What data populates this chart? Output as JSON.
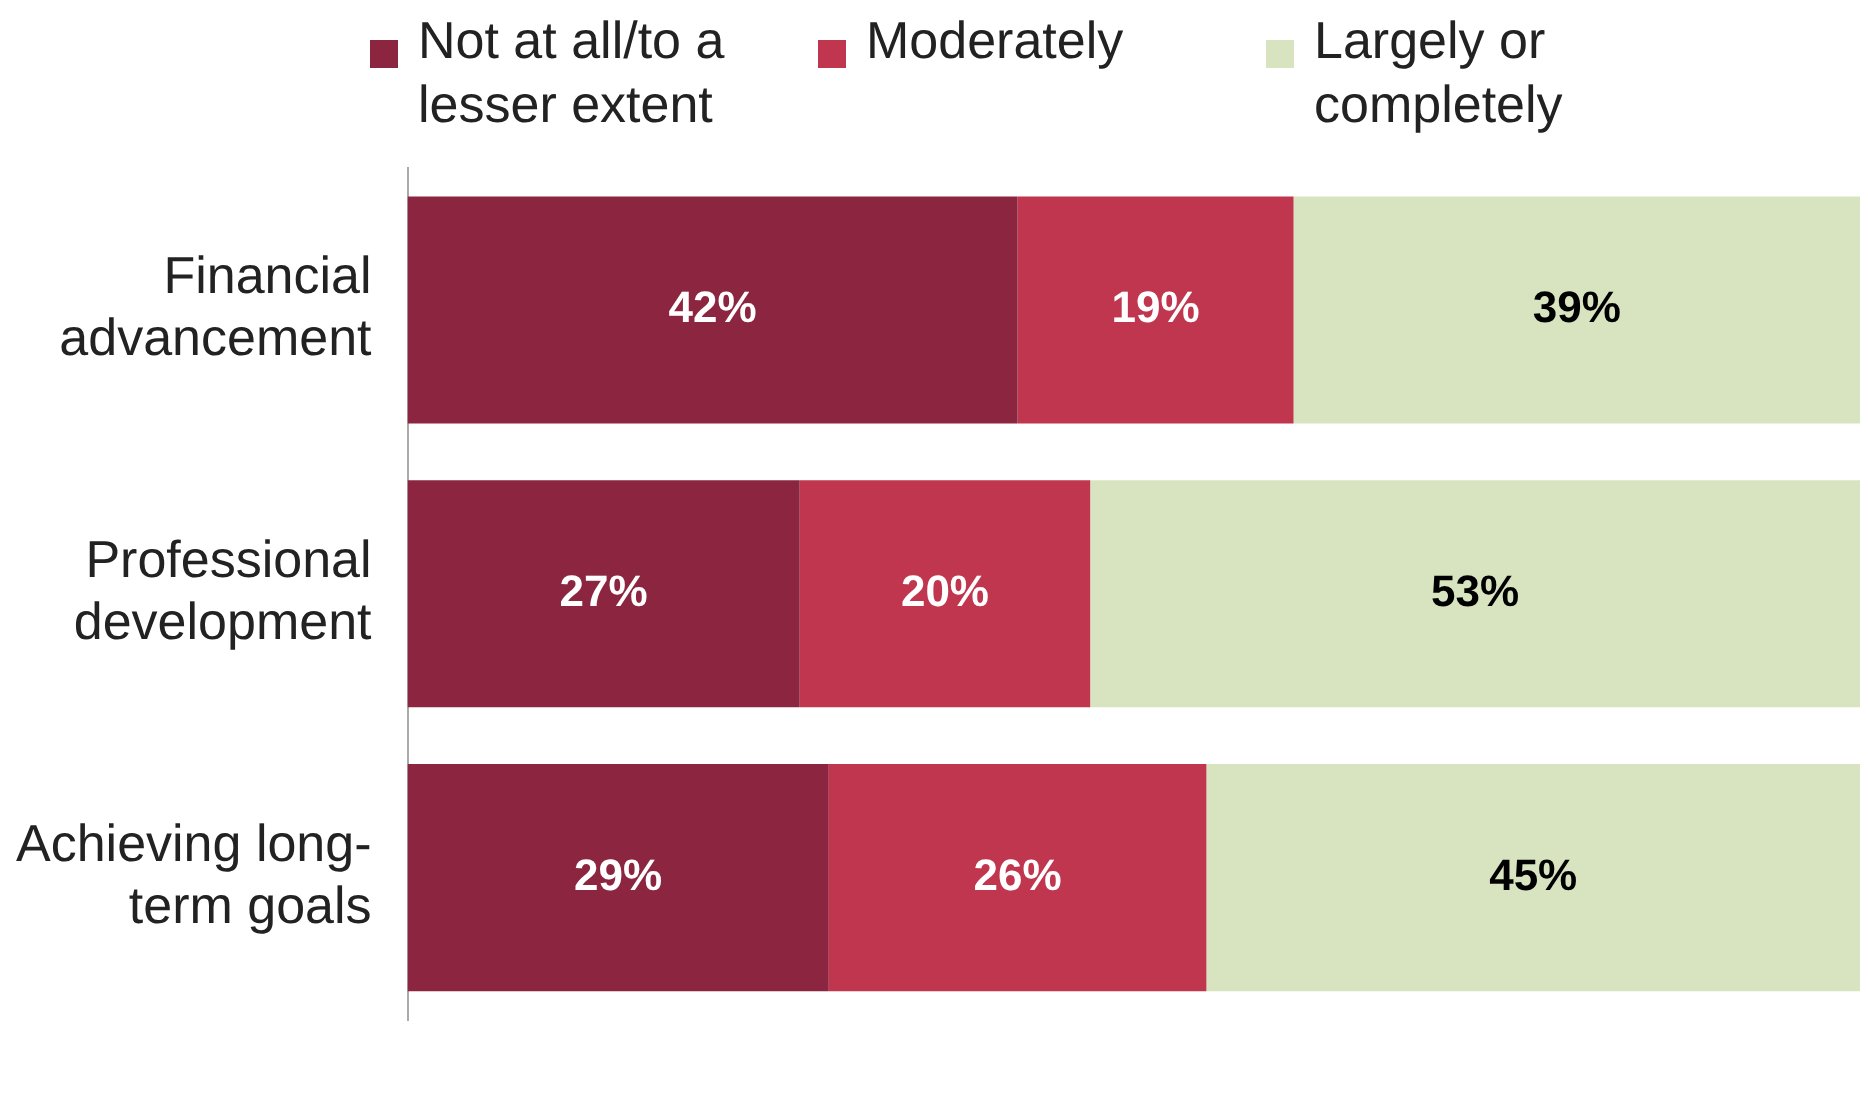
{
  "chart_data": {
    "type": "bar",
    "orientation": "horizontal",
    "stacked": true,
    "categories": [
      "Financial advancement",
      "Professional development",
      "Achieving long-term goals"
    ],
    "series": [
      {
        "name": "Not at all/to a lesser extent",
        "color": "#8b2540",
        "values": [
          42,
          27,
          29
        ],
        "value_labels": [
          "42%",
          "27%",
          "29%"
        ]
      },
      {
        "name": "Moderately",
        "color": "#c0364f",
        "values": [
          19,
          20,
          26
        ],
        "value_labels": [
          "19%",
          "20%",
          "26%"
        ]
      },
      {
        "name": "Largely or completely",
        "color": "#d8e4bf",
        "values": [
          39,
          53,
          45
        ],
        "value_labels": [
          "39%",
          "53%",
          "45%"
        ]
      }
    ],
    "xlim": [
      0,
      100
    ],
    "tick_labels": "y",
    "grid": false,
    "legend": "top"
  }
}
